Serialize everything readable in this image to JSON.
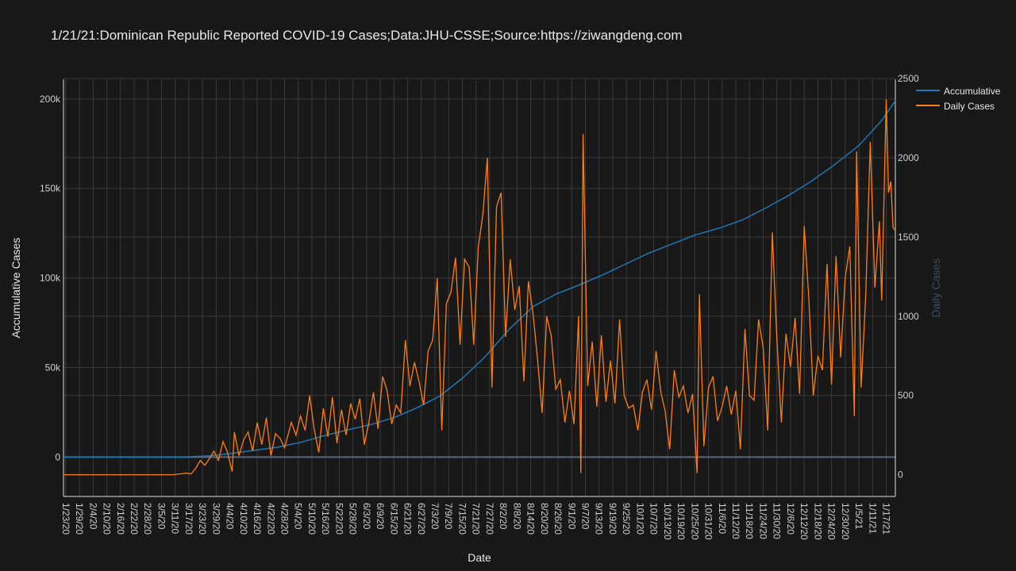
{
  "colors": {
    "background": "#181818",
    "plot_background": "#181818",
    "grid": "#3a3a3a",
    "zero_line": "#5a6480",
    "text": "#e8e8e8",
    "tick_text": "#d0d0d0",
    "y2_title": "#3b4a6b",
    "accumulative": "#1f77b4",
    "daily": "#ff7f0e"
  },
  "chart_data": {
    "type": "line",
    "title": "1/21/21:Dominican Republic Reported COVID-19 Cases;Data:JHU-CSSE;Source:https://ziwangdeng.com",
    "xlabel": "Date",
    "ylabel": "Accumulative Cases",
    "y2label": "Daily Cases",
    "x_range": [
      "2020-01-22",
      "2021-01-21"
    ],
    "ylim": [
      -22000,
      211000
    ],
    "y2lim": [
      -137,
      2495
    ],
    "y_ticks": [
      0,
      50000,
      100000,
      150000,
      200000
    ],
    "y_tick_labels": [
      "0",
      "50k",
      "100k",
      "150k",
      "200k"
    ],
    "y2_ticks": [
      0,
      500,
      1000,
      1500,
      2000,
      2500
    ],
    "y2_tick_labels": [
      "0",
      "500",
      "1000",
      "1500",
      "2000",
      "2500"
    ],
    "x_tick_labels": [
      "1/23/20",
      "1/29/20",
      "2/4/20",
      "2/10/20",
      "2/16/20",
      "2/22/20",
      "2/28/20",
      "3/5/20",
      "3/11/20",
      "3/17/20",
      "3/23/20",
      "3/29/20",
      "4/4/20",
      "4/10/20",
      "4/16/20",
      "4/22/20",
      "4/28/20",
      "5/4/20",
      "5/10/20",
      "5/16/20",
      "5/22/20",
      "5/28/20",
      "6/3/20",
      "6/9/20",
      "6/15/20",
      "6/21/20",
      "6/27/20",
      "7/3/20",
      "7/9/20",
      "7/15/20",
      "7/21/20",
      "7/27/20",
      "8/2/20",
      "8/8/20",
      "8/14/20",
      "8/20/20",
      "8/26/20",
      "9/1/20",
      "9/7/20",
      "9/13/20",
      "9/19/20",
      "9/25/20",
      "10/1/20",
      "10/7/20",
      "10/13/20",
      "10/19/20",
      "10/25/20",
      "10/31/20",
      "11/6/20",
      "11/12/20",
      "11/18/20",
      "11/24/20",
      "11/30/20",
      "12/6/20",
      "12/12/20",
      "12/18/20",
      "12/24/20",
      "12/30/20",
      "1/5/21",
      "1/11/21",
      "1/17/21"
    ],
    "grid": true,
    "legend_position": "top-right",
    "series": [
      {
        "name": "Accumulative",
        "axis": "y",
        "points": [
          [
            "2020-01-22",
            0
          ],
          [
            "2020-03-01",
            0
          ],
          [
            "2020-03-15",
            50
          ],
          [
            "2020-03-25",
            600
          ],
          [
            "2020-04-04",
            1900
          ],
          [
            "2020-04-15",
            3800
          ],
          [
            "2020-04-25",
            5500
          ],
          [
            "2020-05-05",
            8200
          ],
          [
            "2020-05-15",
            11800
          ],
          [
            "2020-05-25",
            15000
          ],
          [
            "2020-06-05",
            18200
          ],
          [
            "2020-06-15",
            22000
          ],
          [
            "2020-06-25",
            27500
          ],
          [
            "2020-07-05",
            34000
          ],
          [
            "2020-07-15",
            44000
          ],
          [
            "2020-07-25",
            56000
          ],
          [
            "2020-08-05",
            72000
          ],
          [
            "2020-08-15",
            84000
          ],
          [
            "2020-08-25",
            91000
          ],
          [
            "2020-09-05",
            96500
          ],
          [
            "2020-09-15",
            102000
          ],
          [
            "2020-09-25",
            108000
          ],
          [
            "2020-10-05",
            114000
          ],
          [
            "2020-10-15",
            119000
          ],
          [
            "2020-10-25",
            124000
          ],
          [
            "2020-11-05",
            128000
          ],
          [
            "2020-11-15",
            132500
          ],
          [
            "2020-11-25",
            139000
          ],
          [
            "2020-12-05",
            146000
          ],
          [
            "2020-12-15",
            154000
          ],
          [
            "2020-12-25",
            163000
          ],
          [
            "2021-01-05",
            174000
          ],
          [
            "2021-01-15",
            188000
          ],
          [
            "2021-01-21",
            199000
          ]
        ]
      },
      {
        "name": "Daily Cases",
        "axis": "y2",
        "points": [
          [
            "2020-01-22",
            0
          ],
          [
            "2020-03-01",
            0
          ],
          [
            "2020-03-10",
            0
          ],
          [
            "2020-03-16",
            10
          ],
          [
            "2020-03-18",
            5
          ],
          [
            "2020-03-20",
            40
          ],
          [
            "2020-03-22",
            90
          ],
          [
            "2020-03-24",
            60
          ],
          [
            "2020-03-26",
            100
          ],
          [
            "2020-03-28",
            150
          ],
          [
            "2020-03-30",
            90
          ],
          [
            "2020-04-01",
            210
          ],
          [
            "2020-04-03",
            140
          ],
          [
            "2020-04-05",
            20
          ],
          [
            "2020-04-06",
            270
          ],
          [
            "2020-04-08",
            120
          ],
          [
            "2020-04-10",
            220
          ],
          [
            "2020-04-12",
            270
          ],
          [
            "2020-04-14",
            150
          ],
          [
            "2020-04-16",
            330
          ],
          [
            "2020-04-18",
            190
          ],
          [
            "2020-04-20",
            360
          ],
          [
            "2020-04-22",
            120
          ],
          [
            "2020-04-24",
            260
          ],
          [
            "2020-04-26",
            230
          ],
          [
            "2020-04-28",
            170
          ],
          [
            "2020-05-01",
            330
          ],
          [
            "2020-05-03",
            250
          ],
          [
            "2020-05-05",
            370
          ],
          [
            "2020-05-07",
            280
          ],
          [
            "2020-05-09",
            500
          ],
          [
            "2020-05-11",
            290
          ],
          [
            "2020-05-13",
            140
          ],
          [
            "2020-05-15",
            420
          ],
          [
            "2020-05-17",
            240
          ],
          [
            "2020-05-19",
            490
          ],
          [
            "2020-05-21",
            200
          ],
          [
            "2020-05-23",
            410
          ],
          [
            "2020-05-25",
            250
          ],
          [
            "2020-05-27",
            450
          ],
          [
            "2020-05-29",
            350
          ],
          [
            "2020-05-31",
            480
          ],
          [
            "2020-06-02",
            190
          ],
          [
            "2020-06-04",
            330
          ],
          [
            "2020-06-06",
            520
          ],
          [
            "2020-06-08",
            290
          ],
          [
            "2020-06-10",
            620
          ],
          [
            "2020-06-12",
            530
          ],
          [
            "2020-06-14",
            320
          ],
          [
            "2020-06-16",
            440
          ],
          [
            "2020-06-18",
            390
          ],
          [
            "2020-06-20",
            850
          ],
          [
            "2020-06-22",
            560
          ],
          [
            "2020-06-24",
            710
          ],
          [
            "2020-06-26",
            590
          ],
          [
            "2020-06-28",
            440
          ],
          [
            "2020-06-30",
            780
          ],
          [
            "2020-07-02",
            850
          ],
          [
            "2020-07-04",
            1240
          ],
          [
            "2020-07-06",
            280
          ],
          [
            "2020-07-08",
            1080
          ],
          [
            "2020-07-10",
            1150
          ],
          [
            "2020-07-12",
            1370
          ],
          [
            "2020-07-14",
            820
          ],
          [
            "2020-07-16",
            1360
          ],
          [
            "2020-07-18",
            1310
          ],
          [
            "2020-07-20",
            820
          ],
          [
            "2020-07-22",
            1440
          ],
          [
            "2020-07-24",
            1640
          ],
          [
            "2020-07-26",
            2000
          ],
          [
            "2020-07-28",
            550
          ],
          [
            "2020-07-30",
            1690
          ],
          [
            "2020-08-01",
            1780
          ],
          [
            "2020-08-03",
            870
          ],
          [
            "2020-08-05",
            1360
          ],
          [
            "2020-08-07",
            1040
          ],
          [
            "2020-08-09",
            1190
          ],
          [
            "2020-08-11",
            590
          ],
          [
            "2020-08-13",
            1220
          ],
          [
            "2020-08-15",
            1020
          ],
          [
            "2020-08-17",
            730
          ],
          [
            "2020-08-19",
            390
          ],
          [
            "2020-08-21",
            1000
          ],
          [
            "2020-08-23",
            880
          ],
          [
            "2020-08-25",
            540
          ],
          [
            "2020-08-27",
            600
          ],
          [
            "2020-08-29",
            330
          ],
          [
            "2020-08-31",
            530
          ],
          [
            "2020-09-02",
            320
          ],
          [
            "2020-09-04",
            1000
          ],
          [
            "2020-09-05",
            10
          ],
          [
            "2020-09-06",
            2150
          ],
          [
            "2020-09-08",
            560
          ],
          [
            "2020-09-10",
            840
          ],
          [
            "2020-09-12",
            430
          ],
          [
            "2020-09-14",
            880
          ],
          [
            "2020-09-16",
            460
          ],
          [
            "2020-09-18",
            720
          ],
          [
            "2020-09-20",
            450
          ],
          [
            "2020-09-22",
            980
          ],
          [
            "2020-09-24",
            500
          ],
          [
            "2020-09-26",
            420
          ],
          [
            "2020-09-28",
            440
          ],
          [
            "2020-09-30",
            280
          ],
          [
            "2020-10-02",
            520
          ],
          [
            "2020-10-04",
            600
          ],
          [
            "2020-10-06",
            410
          ],
          [
            "2020-10-08",
            780
          ],
          [
            "2020-10-10",
            530
          ],
          [
            "2020-10-12",
            400
          ],
          [
            "2020-10-14",
            160
          ],
          [
            "2020-10-16",
            660
          ],
          [
            "2020-10-18",
            490
          ],
          [
            "2020-10-20",
            560
          ],
          [
            "2020-10-22",
            390
          ],
          [
            "2020-10-24",
            510
          ],
          [
            "2020-10-26",
            10
          ],
          [
            "2020-10-27",
            1140
          ],
          [
            "2020-10-29",
            180
          ],
          [
            "2020-10-31",
            550
          ],
          [
            "2020-11-02",
            620
          ],
          [
            "2020-11-04",
            340
          ],
          [
            "2020-11-06",
            430
          ],
          [
            "2020-11-08",
            560
          ],
          [
            "2020-11-10",
            380
          ],
          [
            "2020-11-12",
            530
          ],
          [
            "2020-11-14",
            160
          ],
          [
            "2020-11-16",
            920
          ],
          [
            "2020-11-18",
            500
          ],
          [
            "2020-11-20",
            470
          ],
          [
            "2020-11-22",
            980
          ],
          [
            "2020-11-24",
            800
          ],
          [
            "2020-11-26",
            280
          ],
          [
            "2020-11-28",
            1530
          ],
          [
            "2020-11-30",
            860
          ],
          [
            "2020-12-02",
            330
          ],
          [
            "2020-12-04",
            890
          ],
          [
            "2020-12-06",
            680
          ],
          [
            "2020-12-08",
            990
          ],
          [
            "2020-12-10",
            510
          ],
          [
            "2020-12-12",
            1570
          ],
          [
            "2020-12-14",
            1120
          ],
          [
            "2020-12-16",
            500
          ],
          [
            "2020-12-18",
            750
          ],
          [
            "2020-12-20",
            660
          ],
          [
            "2020-12-22",
            1330
          ],
          [
            "2020-12-24",
            570
          ],
          [
            "2020-12-26",
            1380
          ],
          [
            "2020-12-28",
            740
          ],
          [
            "2020-12-30",
            1240
          ],
          [
            "2021-01-01",
            1440
          ],
          [
            "2021-01-03",
            370
          ],
          [
            "2021-01-04",
            2040
          ],
          [
            "2021-01-06",
            550
          ],
          [
            "2021-01-08",
            1130
          ],
          [
            "2021-01-10",
            2100
          ],
          [
            "2021-01-12",
            1180
          ],
          [
            "2021-01-14",
            1600
          ],
          [
            "2021-01-15",
            1100
          ],
          [
            "2021-01-17",
            2370
          ],
          [
            "2021-01-18",
            1780
          ],
          [
            "2021-01-19",
            1850
          ],
          [
            "2021-01-20",
            1560
          ],
          [
            "2021-01-21",
            1540
          ]
        ]
      }
    ]
  }
}
